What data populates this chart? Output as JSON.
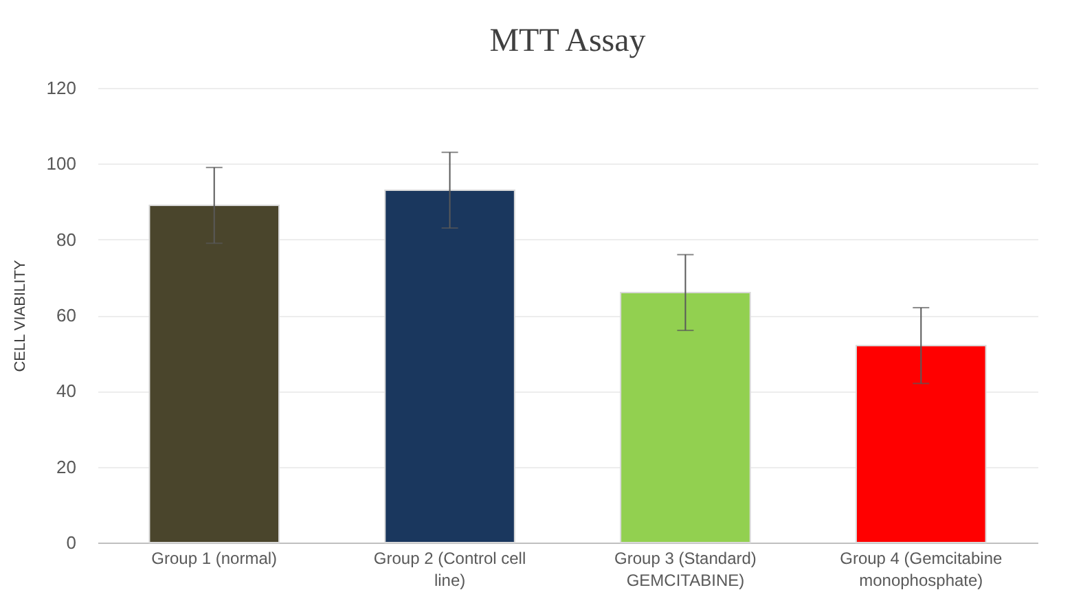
{
  "chart_data": {
    "type": "bar",
    "title": "MTT Assay",
    "ylabel": "CELL VIABILITY",
    "categories": [
      "Group 1 (normal)",
      "Group 2 (Control  cell line)",
      "Group 3 (Standard) GEMCITABINE)",
      "Group 4 (Gemcitabine monophosphate)"
    ],
    "values": [
      89,
      93,
      66,
      52
    ],
    "errors": [
      10,
      10,
      10,
      10
    ],
    "colors": [
      "#4a452c",
      "#1a375e",
      "#92d050",
      "#ff0000"
    ],
    "ylim": [
      0,
      120
    ],
    "yticks": [
      0,
      20,
      40,
      60,
      80,
      100,
      120
    ],
    "grid": "y"
  }
}
